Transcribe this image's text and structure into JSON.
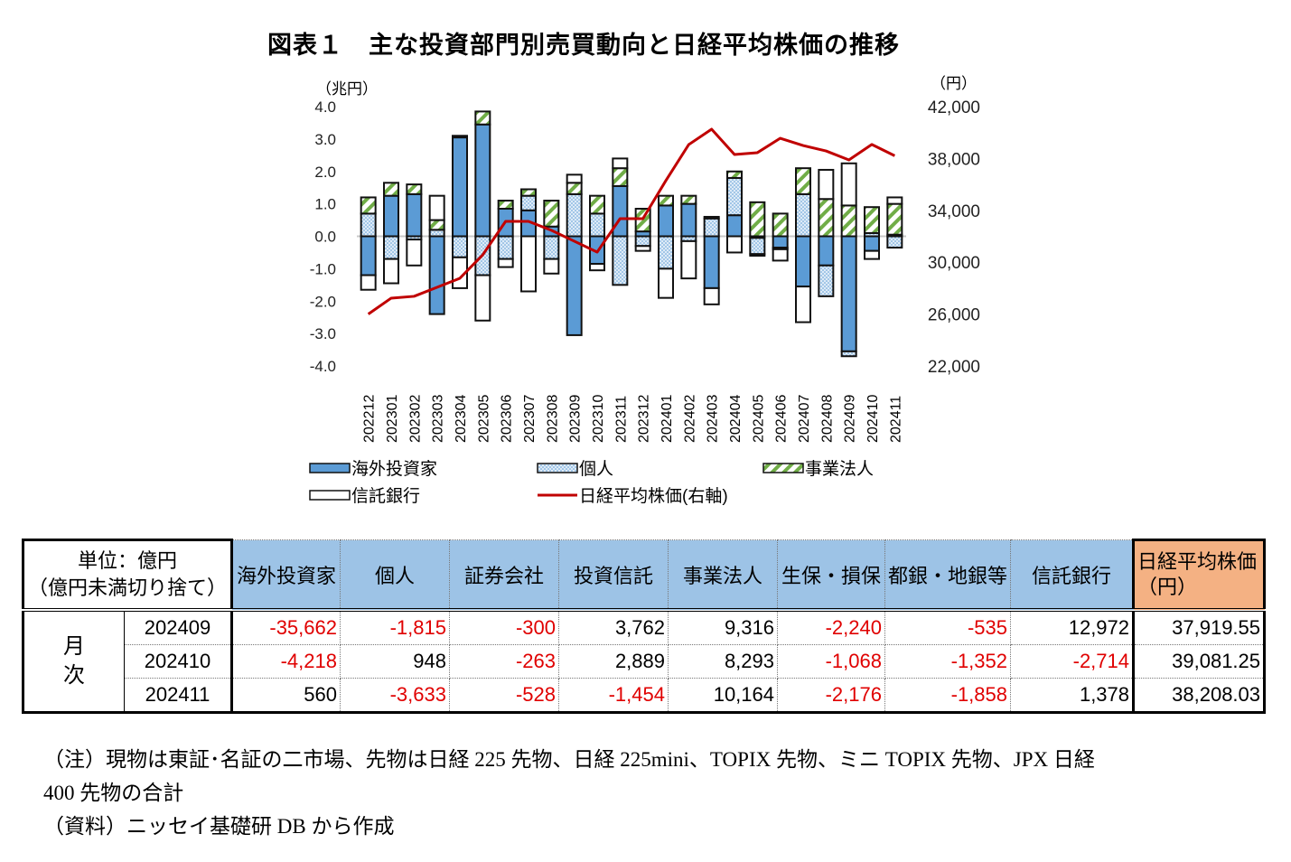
{
  "title": "図表１　主な投資部門別売買動向と日経平均株価の推移",
  "chart_data": {
    "type": "bar",
    "stacked": true,
    "left_axis_unit": "（兆円）",
    "right_axis_unit": "（円）",
    "ylim": [
      -4.0,
      4.0
    ],
    "y_ticks": [
      "4.0",
      "3.0",
      "2.0",
      "1.0",
      "0.0",
      "-1.0",
      "-2.0",
      "-3.0",
      "-4.0"
    ],
    "y2lim": [
      22000,
      42000
    ],
    "y2_ticks": [
      "42,000",
      "38,000",
      "34,000",
      "30,000",
      "26,000",
      "22,000"
    ],
    "categories": [
      "202212",
      "202301",
      "202302",
      "202303",
      "202304",
      "202305",
      "202306",
      "202307",
      "202308",
      "202309",
      "202310",
      "202311",
      "202312",
      "202401",
      "202402",
      "202403",
      "202404",
      "202405",
      "202406",
      "202407",
      "202408",
      "202409",
      "202410",
      "202411"
    ],
    "series": [
      {
        "name": "海外投資家",
        "color": "#5b9bd5",
        "pattern": "solid",
        "values": [
          -1.2,
          1.25,
          1.3,
          -2.4,
          3.05,
          3.45,
          0.85,
          0.8,
          0.3,
          -3.05,
          -0.85,
          1.55,
          0.15,
          0.95,
          1.0,
          -1.6,
          0.65,
          -0.05,
          -0.35,
          -1.55,
          -0.9,
          -3.55,
          -0.45,
          0.05
        ]
      },
      {
        "name": "個人",
        "color": "#deebf7",
        "pattern": "dots",
        "values": [
          0.7,
          -0.7,
          -0.1,
          0.2,
          -0.65,
          -1.2,
          -0.7,
          0.45,
          -0.7,
          1.3,
          0.7,
          -1.5,
          -0.3,
          -1.0,
          -0.15,
          0.55,
          1.15,
          -0.5,
          -0.05,
          1.3,
          -0.95,
          -0.15,
          0.1,
          -0.35
        ]
      },
      {
        "name": "事業法人",
        "color": "#70ad47",
        "pattern": "stripes",
        "values": [
          0.5,
          0.4,
          0.3,
          0.3,
          0.05,
          0.4,
          0.25,
          0.2,
          0.8,
          0.35,
          0.55,
          0.55,
          0.7,
          0.3,
          0.25,
          0.05,
          0.2,
          1.05,
          0.7,
          0.8,
          1.15,
          0.95,
          0.8,
          0.95
        ]
      },
      {
        "name": "信託銀行",
        "color": "#ffffff",
        "pattern": "outline",
        "values": [
          -0.45,
          -0.75,
          -0.8,
          0.75,
          -0.95,
          -1.4,
          -0.25,
          -1.7,
          -0.45,
          0.25,
          -0.2,
          0.3,
          -0.15,
          -0.9,
          -1.15,
          -0.5,
          -0.5,
          -0.05,
          -0.35,
          -1.1,
          0.9,
          1.3,
          -0.25,
          0.2
        ]
      }
    ],
    "line": {
      "name": "日経平均株価(右軸)",
      "color": "#c00000",
      "axis": "right",
      "values": [
        26000,
        27230,
        27370,
        28060,
        28760,
        30570,
        33150,
        33150,
        32460,
        31620,
        30780,
        33360,
        33360,
        36290,
        39070,
        40260,
        38310,
        38450,
        39560,
        39000,
        38580,
        37890,
        39080,
        38210
      ]
    },
    "legend": [
      {
        "label": "海外投資家",
        "key": "overseas"
      },
      {
        "label": "個人",
        "key": "individual"
      },
      {
        "label": "事業法人",
        "key": "corporate"
      },
      {
        "label": "信託銀行",
        "key": "trust"
      },
      {
        "label": "日経平均株価(右軸)",
        "key": "nikkei"
      }
    ],
    "legend_placement": "bottom"
  },
  "table": {
    "unit_line1": "単位：億円",
    "unit_line2": "（億円未満切り捨て）",
    "columns": [
      "海外投資家",
      "個人",
      "証券会社",
      "投資信託",
      "事業法人",
      "生保・損保",
      "都銀・地銀等",
      "信託銀行"
    ],
    "nikkei_header_line1": "日経平均株価",
    "nikkei_header_line2": "（円）",
    "group_label_1": "月",
    "group_label_2": "次",
    "rows": [
      {
        "date": "202409",
        "values": [
          "-35,662",
          "-1,815",
          "-300",
          "3,762",
          "9,316",
          "-2,240",
          "-535",
          "12,972"
        ],
        "nikkei": "37,919.55"
      },
      {
        "date": "202410",
        "values": [
          "-4,218",
          "948",
          "-263",
          "2,889",
          "8,293",
          "-1,068",
          "-1,352",
          "-2,714"
        ],
        "nikkei": "39,081.25"
      },
      {
        "date": "202411",
        "values": [
          "560",
          "-3,633",
          "-528",
          "-1,454",
          "10,164",
          "-2,176",
          "-1,858",
          "1,378"
        ],
        "nikkei": "38,208.03"
      }
    ]
  },
  "notes": {
    "line1": "（注）現物は東証･名証の二市場、先物は日経 225 先物、日経 225mini、TOPIX 先物、ミニ TOPIX 先物、JPX 日経",
    "line2": "400 先物の合計",
    "line3": "（資料）ニッセイ基礎研 DB から作成"
  }
}
